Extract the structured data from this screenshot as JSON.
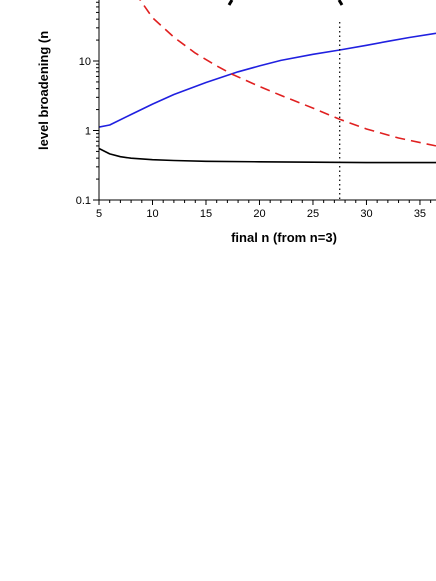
{
  "chart_data": {
    "type": "line",
    "xlabel": "final n (from n=3)",
    "ylabel": "level broadening (n",
    "x_scale": "linear",
    "y_scale": "log",
    "xlim": [
      5,
      36.5
    ],
    "ylim": [
      0.1,
      200
    ],
    "x_ticks": [
      5,
      10,
      15,
      20,
      25,
      30,
      35
    ],
    "x_tick_labels": [
      "5",
      "10",
      "15",
      "20",
      "25",
      "30",
      "35"
    ],
    "y_ticks": [
      0.1,
      1,
      10
    ],
    "y_tick_labels": [
      "0.1",
      "1",
      "10"
    ],
    "grid": false,
    "series": [
      {
        "color": "#2020e0",
        "dash": "solid",
        "points": [
          [
            5,
            1.12
          ],
          [
            6,
            1.2
          ],
          [
            8,
            1.7
          ],
          [
            10,
            2.4
          ],
          [
            12,
            3.3
          ],
          [
            15,
            4.9
          ],
          [
            18,
            7.0
          ],
          [
            20,
            8.5
          ],
          [
            22,
            10.2
          ],
          [
            25,
            12.5
          ],
          [
            27.5,
            14.4
          ],
          [
            30,
            16.8
          ],
          [
            32,
            19.2
          ],
          [
            34,
            21.8
          ],
          [
            36.5,
            25
          ]
        ]
      },
      {
        "color": "#e02020",
        "dash": "dashed",
        "points": [
          [
            7.5,
            150
          ],
          [
            9,
            70
          ],
          [
            10,
            42
          ],
          [
            12,
            22
          ],
          [
            14,
            13
          ],
          [
            16,
            8.5
          ],
          [
            17.5,
            6.4
          ],
          [
            20,
            4.3
          ],
          [
            22,
            3.2
          ],
          [
            25,
            2.1
          ],
          [
            27.5,
            1.45
          ],
          [
            30,
            1.05
          ],
          [
            33,
            0.78
          ],
          [
            36.5,
            0.6
          ]
        ]
      },
      {
        "color": "#000000",
        "dash": "solid",
        "points": [
          [
            5,
            0.55
          ],
          [
            6,
            0.46
          ],
          [
            7,
            0.42
          ],
          [
            8,
            0.4
          ],
          [
            10,
            0.38
          ],
          [
            12,
            0.37
          ],
          [
            15,
            0.36
          ],
          [
            20,
            0.355
          ],
          [
            25,
            0.35
          ],
          [
            30,
            0.345
          ],
          [
            36.5,
            0.345
          ]
        ]
      }
    ],
    "marker_line": {
      "x": 27.5,
      "style": "dotted"
    }
  }
}
